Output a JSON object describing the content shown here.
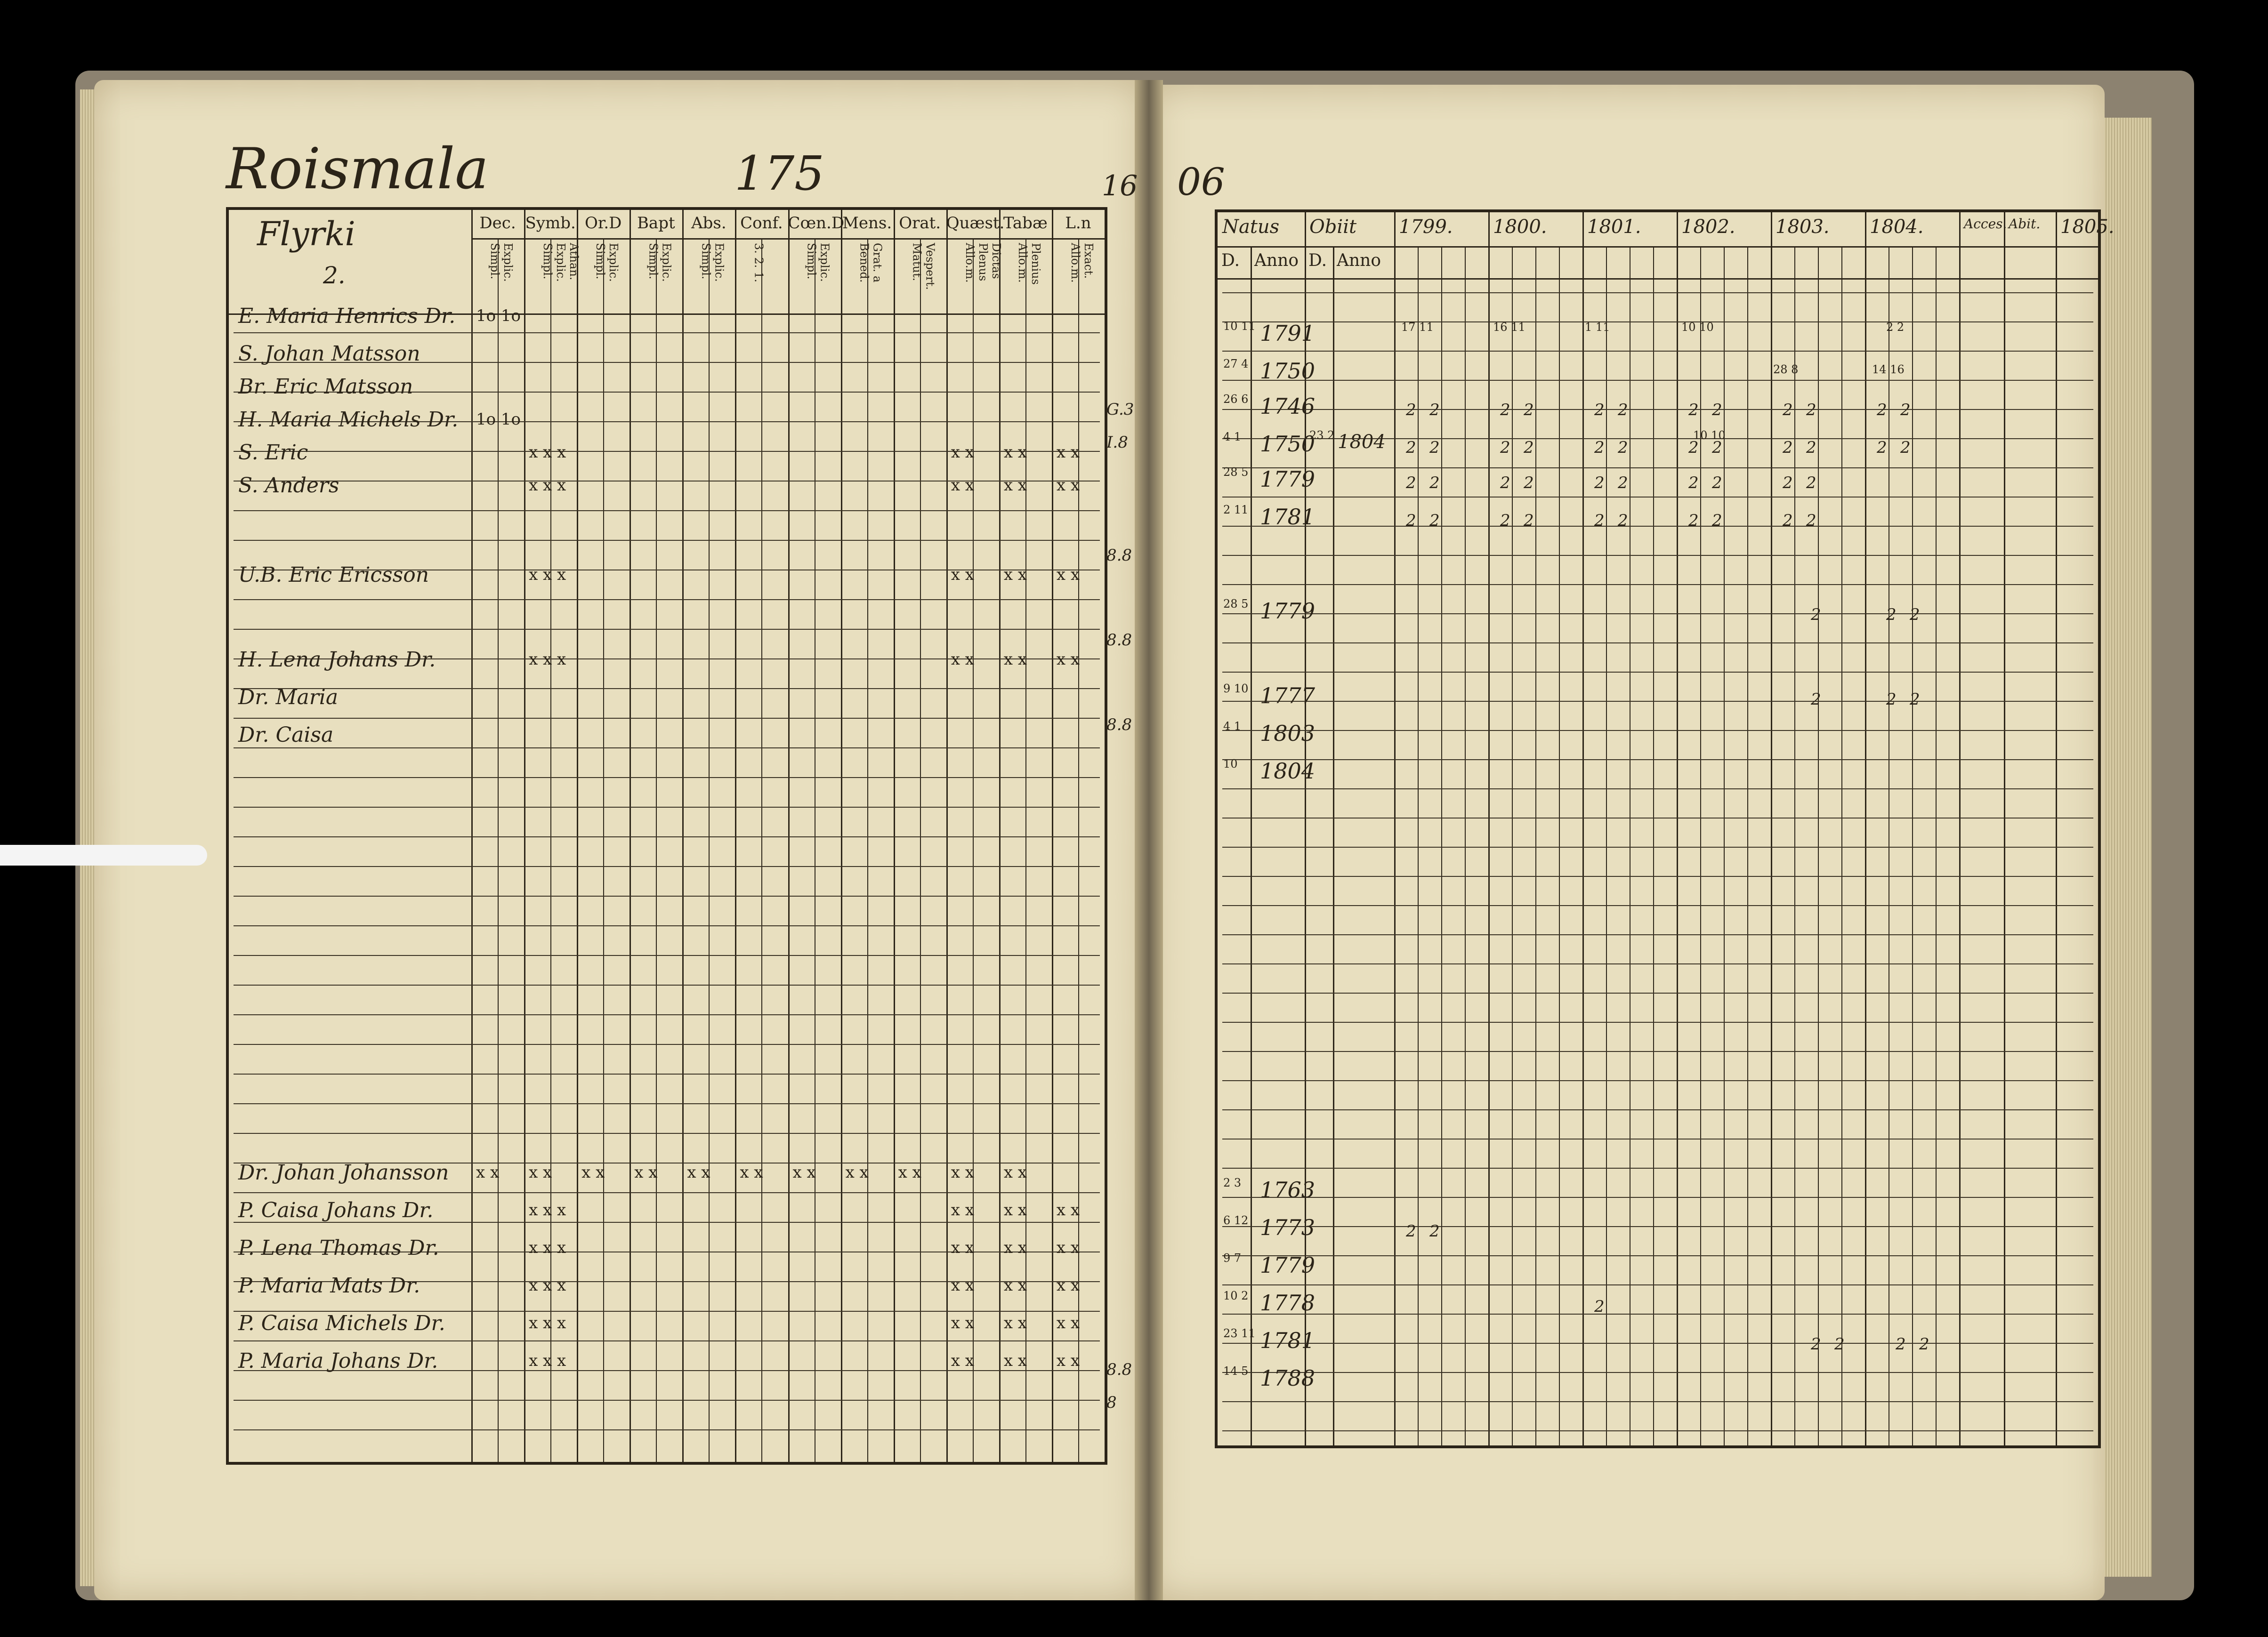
{
  "left_page": {
    "title": "Roismala",
    "page_number": "175",
    "folio_mark": "16",
    "subtitle_line1": "Flyrki",
    "subtitle_line2": "2.",
    "column_headers": [
      "Dec.",
      "Symb.",
      "Or.D",
      "Bapt",
      "Abs.",
      "Conf.",
      "Cœn.D",
      "Mens.",
      "Orat.",
      "Quæst.",
      "Tabæ",
      "L.n"
    ],
    "sub_headers": [
      "Explic. Simpl.",
      "Athan. Explic. Simpl.",
      "Explic. Simpl.",
      "Explic. Simpl.",
      "Explic. Simpl.",
      "3. 2. 1.",
      "Explic. Simpl.",
      "Grat. a Bened.",
      "Vespert. Matut.",
      "Dictas Plenus Allo.m.",
      "Plenius Allo.m.",
      "Exact. Allo.m."
    ],
    "names_top": [
      "E. Maria Henrics Dr.",
      "S. Johan Matsson",
      "Br. Eric Matsson",
      "H. Maria Michels Dr.",
      "S. Eric",
      "S. Anders",
      "U.B. Eric Ericsson",
      "H. Lena Johans Dr.",
      "Dr. Maria",
      "Dr. Caisa"
    ],
    "names_bottom": [
      "Dr. Johan Johansson",
      "P. Caisa Johans Dr.",
      "P. Lena Thomas Dr.",
      "P. Maria Mats Dr.",
      "P. Caisa Michels Dr.",
      "P. Maria Johans Dr."
    ],
    "margin_marks": [
      "G.3",
      "I.8",
      "8.8",
      "8.8",
      "8.8",
      "8.8",
      "8"
    ],
    "symbols": {
      "cross3": "x x x",
      "cross2": "x x",
      "row1_dec": "1o 1o"
    }
  },
  "right_page": {
    "folio": "06",
    "headers": [
      "Natus",
      "Obiit",
      "1799.",
      "1800.",
      "1801.",
      "1802.",
      "1803.",
      "1804.",
      "Acces.",
      "Abit.",
      "1805."
    ],
    "sub_headers": [
      "D.",
      "Anno",
      "D.",
      "Anno"
    ],
    "birth_years_top": [
      "1791",
      "1750",
      "1746",
      "1750",
      "1779",
      "1781",
      "1779",
      "1777",
      "1803",
      "1804"
    ],
    "day_month_top": [
      "10 11",
      "27 4",
      "26 6",
      "4 1",
      "28 5",
      "2 11",
      "28 5",
      "9 10",
      "4 1",
      "10"
    ],
    "death": {
      "day": "23 2",
      "year": "1804"
    },
    "birth_years_bottom": [
      "1763",
      "1773",
      "1779",
      "1778",
      "1781",
      "1788"
    ],
    "day_month_bottom": [
      "2 3",
      "6 12",
      "9 7",
      "10 2",
      "23 11",
      "14 5"
    ],
    "small_marks": [
      "17 11",
      "16 11",
      "1 11",
      "10 10",
      "28 8",
      "14 16",
      "2 2",
      "10 10"
    ],
    "check_mark": "2"
  }
}
